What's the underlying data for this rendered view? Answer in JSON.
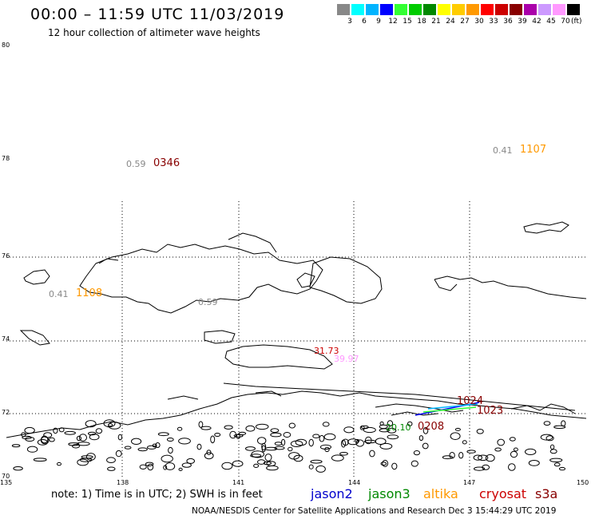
{
  "title": "00:00 – 11:59 UTC 11/03/2019",
  "subtitle": "12 hour collection of altimeter wave heights",
  "legend": {
    "unit": "(ft)",
    "items": [
      {
        "label": "3",
        "color": "#888888"
      },
      {
        "label": "6",
        "color": "#00ffff"
      },
      {
        "label": "9",
        "color": "#00b4ff"
      },
      {
        "label": "12",
        "color": "#0000ff"
      },
      {
        "label": "15",
        "color": "#33ff33"
      },
      {
        "label": "18",
        "color": "#00cc00"
      },
      {
        "label": "21",
        "color": "#008800"
      },
      {
        "label": "24",
        "color": "#ffff00"
      },
      {
        "label": "27",
        "color": "#ffcc00"
      },
      {
        "label": "30",
        "color": "#ff9900"
      },
      {
        "label": "33",
        "color": "#ff0000"
      },
      {
        "label": "36",
        "color": "#cc0000"
      },
      {
        "label": "39",
        "color": "#880000"
      },
      {
        "label": "42",
        "color": "#aa00aa"
      },
      {
        "label": "45",
        "color": "#cc99ff"
      },
      {
        "label": "70",
        "color": "#ff99ff"
      },
      {
        "label": "",
        "color": "#000000"
      }
    ]
  },
  "lat_labels": [
    "80",
    "78",
    "76",
    "74",
    "72",
    "70"
  ],
  "lon_labels": [
    "135",
    "138",
    "141",
    "144",
    "147",
    "150"
  ],
  "annotations": [
    {
      "text": "0.59",
      "color": "#888888"
    },
    {
      "text": "0346",
      "color": "#880000"
    },
    {
      "text": "0.41",
      "color": "#888888"
    },
    {
      "text": "1107",
      "color": "#ff9900"
    },
    {
      "text": "0.41",
      "color": "#888888"
    },
    {
      "text": "1108",
      "color": "#ff9900"
    },
    {
      "text": "0.59",
      "color": "#888888"
    },
    {
      "text": "31.73",
      "color": "#cc0000"
    },
    {
      "text": "39.97",
      "color": "#ff99ff"
    },
    {
      "text": "1024",
      "color": "#880000"
    },
    {
      "text": "1023",
      "color": "#880000"
    },
    {
      "text": "0208",
      "color": "#880000"
    },
    {
      "text": "20.10",
      "color": "#008800"
    }
  ],
  "note": "note:  1) Time is in UTC;  2) SWH is in feet",
  "satellites": [
    {
      "name": "jason2",
      "color": "#0000cc"
    },
    {
      "name": "jason3",
      "color": "#008800"
    },
    {
      "name": "altika",
      "color": "#ff9900"
    },
    {
      "name": "cryosat",
      "color": "#cc0000"
    },
    {
      "name": "s3a",
      "color": "#880000"
    }
  ],
  "footer": "NOAA/NESDIS Center for Satellite Applications and Research    Dec  3 15:44:29 UTC 2019"
}
